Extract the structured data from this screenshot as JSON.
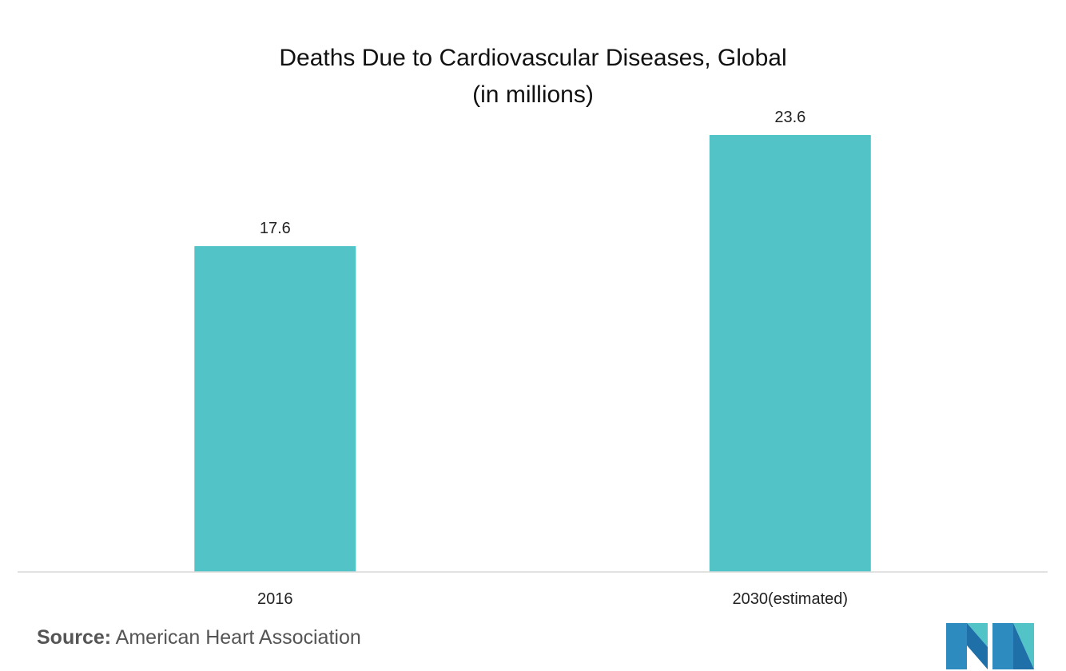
{
  "chart_data": {
    "type": "bar",
    "title": "Deaths Due to Cardiovascular Diseases, Global",
    "subtitle": "(in millions)",
    "categories": [
      "2016",
      "2030(estimated)"
    ],
    "values": [
      17.6,
      23.6
    ],
    "value_labels": [
      "17.6",
      "23.6"
    ],
    "xlabel": "",
    "ylabel": "",
    "ylim": [
      0,
      23.6
    ],
    "grid": false,
    "legend": "none",
    "bar_color": "#52C4C8",
    "axis_color": "#D9D9D9"
  },
  "source": {
    "prefix": "Source:",
    "text": "American Heart Association"
  },
  "logo": {
    "icon": "mordor-logo-icon",
    "colors": [
      "#2E8BC0",
      "#52C4C8",
      "#1F6FA8"
    ]
  }
}
